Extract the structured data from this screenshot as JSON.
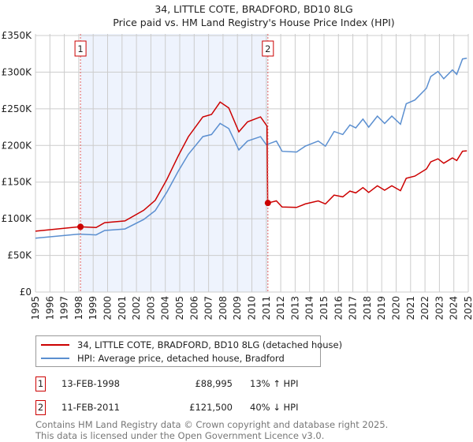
{
  "chart_data": {
    "type": "line",
    "title": "34, LITTLE COTE, BRADFORD, BD10 8LG",
    "subtitle": "Price paid vs. HM Land Registry's House Price Index (HPI)",
    "xlabel": "",
    "ylabel": "",
    "xlim": [
      1995,
      2025
    ],
    "ylim": [
      0,
      350000
    ],
    "x_ticks": [
      "1995",
      "1996",
      "1997",
      "1998",
      "1999",
      "2000",
      "2001",
      "2002",
      "2003",
      "2004",
      "2005",
      "2006",
      "2007",
      "2008",
      "2009",
      "2010",
      "2011",
      "2012",
      "2013",
      "2014",
      "2015",
      "2016",
      "2017",
      "2018",
      "2019",
      "2020",
      "2021",
      "2022",
      "2023",
      "2024",
      "2025"
    ],
    "y_ticks": [
      {
        "value": 0,
        "label": "£0"
      },
      {
        "value": 50000,
        "label": "£50K"
      },
      {
        "value": 100000,
        "label": "£100K"
      },
      {
        "value": 150000,
        "label": "£150K"
      },
      {
        "value": 200000,
        "label": "£200K"
      },
      {
        "value": 250000,
        "label": "£250K"
      },
      {
        "value": 300000,
        "label": "£300K"
      },
      {
        "value": 350000,
        "label": "£350K"
      }
    ],
    "grid": true,
    "series": [
      {
        "name": "34, LITTLE COTE, BRADFORD, BD10 8LG (detached house)",
        "color": "#cc0000",
        "x": [
          1995.0,
          1998.0,
          1998.12,
          1999.2,
          1999.8,
          2001.2,
          2002.5,
          2003.3,
          2004.1,
          2004.9,
          2005.6,
          2006.6,
          2007.2,
          2007.8,
          2008.4,
          2009.1,
          2009.7,
          2010.6,
          2011.05,
          2011.1,
          2011.7,
          2012.1,
          2013.1,
          2013.7,
          2014.6,
          2015.1,
          2015.7,
          2016.3,
          2016.8,
          2017.2,
          2017.7,
          2018.1,
          2018.7,
          2019.2,
          2019.7,
          2020.3,
          2020.7,
          2021.3,
          2022.1,
          2022.4,
          2022.9,
          2023.3,
          2023.9,
          2024.2,
          2024.6,
          2024.9
        ],
        "y": [
          83000,
          89000,
          88995,
          88000,
          94700,
          97000,
          111600,
          125100,
          153300,
          186000,
          212000,
          239000,
          242300,
          259200,
          251300,
          218600,
          232200,
          239000,
          226500,
          121500,
          124400,
          116000,
          115400,
          120200,
          124400,
          120200,
          132300,
          129900,
          137700,
          135300,
          142500,
          135900,
          145000,
          138900,
          145000,
          138300,
          155200,
          158200,
          167900,
          177600,
          181800,
          175800,
          183000,
          179400,
          192100,
          192700
        ]
      },
      {
        "name": "HPI: Average price, detached house, Bradford",
        "color": "#5b8fd0",
        "x": [
          1995.0,
          1998.0,
          1999.2,
          1999.8,
          2001.2,
          2002.5,
          2003.3,
          2004.1,
          2004.9,
          2005.6,
          2006.6,
          2007.2,
          2007.8,
          2008.4,
          2009.1,
          2009.7,
          2010.6,
          2011.0,
          2011.7,
          2012.1,
          2013.1,
          2013.7,
          2014.6,
          2015.1,
          2015.7,
          2016.3,
          2016.8,
          2017.2,
          2017.7,
          2018.1,
          2018.7,
          2019.2,
          2019.7,
          2020.3,
          2020.7,
          2021.3,
          2022.1,
          2022.4,
          2022.9,
          2023.3,
          2023.9,
          2024.2,
          2024.6,
          2024.9
        ],
        "y": [
          73600,
          79000,
          78000,
          84000,
          86000,
          99000,
          111000,
          136000,
          165000,
          188000,
          212000,
          215000,
          230000,
          223000,
          194000,
          206000,
          212000,
          201000,
          206000,
          192000,
          191000,
          199000,
          206000,
          199000,
          219000,
          215000,
          228000,
          224000,
          236000,
          225000,
          240000,
          230000,
          240000,
          229000,
          257000,
          262000,
          278000,
          294000,
          301000,
          291000,
          303000,
          297000,
          318000,
          319000
        ]
      }
    ],
    "annotations": [
      {
        "label": "1",
        "x": 1998.12,
        "y": 88995
      },
      {
        "label": "2",
        "x": 2011.11,
        "y": 121500
      }
    ],
    "shaded_range": [
      1998.12,
      2011.11
    ],
    "legend_placement": "bottom"
  },
  "legend": [
    {
      "label": "34, LITTLE COTE, BRADFORD, BD10 8LG (detached house)",
      "color": "#cc0000"
    },
    {
      "label": "HPI: Average price, detached house, Bradford",
      "color": "#5b8fd0"
    }
  ],
  "sales": [
    {
      "num": "1",
      "date": "13-FEB-1998",
      "price": "£88,995",
      "hpi": "13% ↑ HPI"
    },
    {
      "num": "2",
      "date": "11-FEB-2011",
      "price": "£121,500",
      "hpi": "40% ↓ HPI"
    }
  ],
  "footer": {
    "line1": "Contains HM Land Registry data © Crown copyright and database right 2025.",
    "line2": "This data is licensed under the Open Government Licence v3.0."
  }
}
